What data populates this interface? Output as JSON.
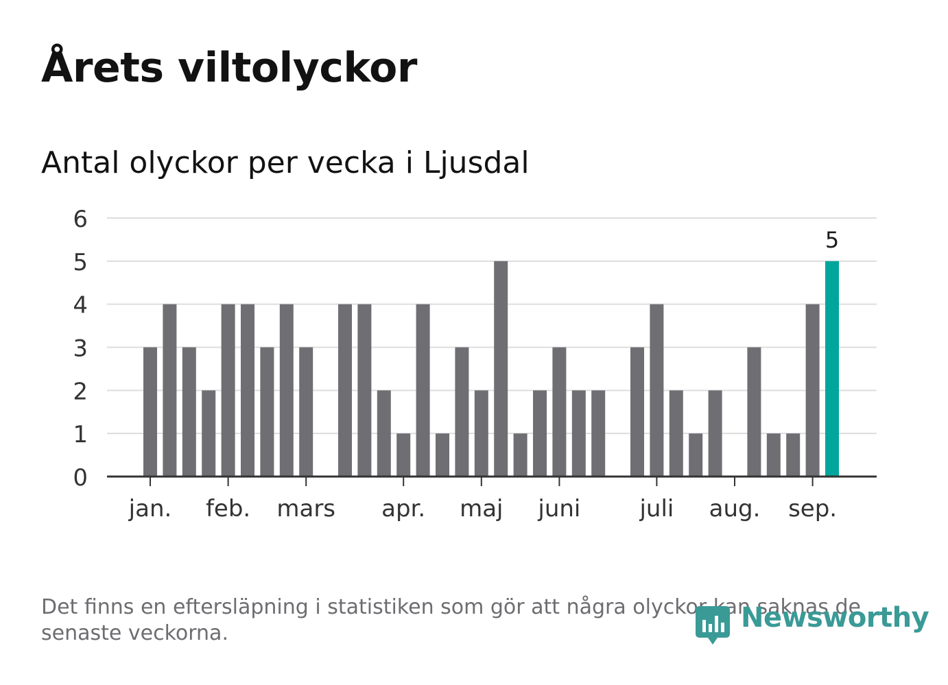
{
  "title": "Årets viltolyckor",
  "subtitle": "Antal olyckor per vecka i Ljusdal",
  "footnote": "Det finns en eftersläpning i statistiken som gör att några olyckor kan saknas de senaste veckorna.",
  "logo": {
    "text": "Newsworthy",
    "icon": "newsworthy-bar-chart-icon"
  },
  "colors": {
    "bar": "#6f6e73",
    "highlight": "#00a69b",
    "grid": "#dddddd",
    "axis": "#333333",
    "logo": "#3a9a96"
  },
  "chart_data": {
    "type": "bar",
    "title": "",
    "xlabel": "",
    "ylabel": "",
    "ylim": [
      0,
      6
    ],
    "yticks": [
      0,
      1,
      2,
      3,
      4,
      5,
      6
    ],
    "grid": true,
    "month_labels": [
      "jan.",
      "feb.",
      "mars",
      "apr.",
      "maj",
      "juni",
      "juli",
      "aug.",
      "sep."
    ],
    "month_start_weeks": [
      1,
      5,
      9,
      14,
      18,
      22,
      27,
      31,
      35
    ],
    "weeks": [
      1,
      2,
      3,
      4,
      5,
      6,
      7,
      8,
      9,
      10,
      11,
      12,
      13,
      14,
      15,
      16,
      17,
      18,
      19,
      20,
      21,
      22,
      23,
      24,
      25,
      26,
      27,
      28,
      29,
      30,
      31,
      32,
      33,
      34,
      35,
      36
    ],
    "values": [
      3,
      4,
      3,
      2,
      4,
      4,
      3,
      4,
      3,
      0,
      4,
      4,
      2,
      1,
      4,
      1,
      3,
      2,
      5,
      1,
      2,
      3,
      2,
      2,
      0,
      3,
      4,
      2,
      1,
      2,
      0,
      3,
      1,
      1,
      4,
      5
    ],
    "highlight_index": 35,
    "highlight_label": "5"
  }
}
